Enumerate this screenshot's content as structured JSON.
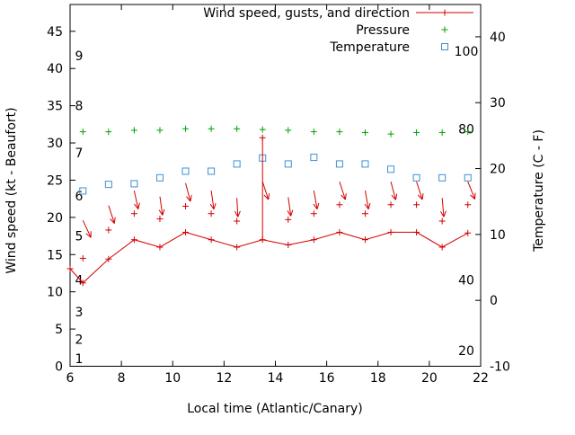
{
  "chart_data": {
    "type": "line",
    "title": "",
    "xlabel": "Local time (Atlantic/Canary)",
    "ylabel_left": "Wind speed (kt - Beaufort)",
    "ylabel_right": "Temperature (C - F)",
    "legend": {
      "wind": "Wind speed, gusts, and direction",
      "pressure": "Pressure",
      "temperature": "Temperature"
    },
    "legend_position": "top-center-inside",
    "grid": false,
    "x_range": [
      6,
      22
    ],
    "x_ticks": [
      6,
      8,
      10,
      12,
      14,
      16,
      18,
      20,
      22
    ],
    "y_left_range": [
      0,
      48.6
    ],
    "y_left_ticks": [
      0,
      5,
      10,
      15,
      20,
      25,
      30,
      35,
      40,
      45
    ],
    "y_right_range": [
      -10,
      44.9
    ],
    "y_right_ticks": [
      -10,
      0,
      10,
      20,
      30,
      40
    ],
    "beaufort_scale": {
      "labels": [
        "1",
        "2",
        "3",
        "4",
        "5",
        "6",
        "7",
        "8",
        "9"
      ],
      "kt_positions": [
        1.0,
        3.6,
        7.3,
        11.6,
        17.5,
        22.9,
        28.7,
        35.0,
        41.7
      ]
    },
    "inner_right_scale": {
      "labels": [
        "100",
        "80",
        "40",
        "20"
      ],
      "kt_positions": [
        42.3,
        31.9,
        11.6,
        2.1
      ]
    },
    "colors": {
      "wind": "#d40000",
      "pressure": "#00a000",
      "temperature": "#3f8fd2",
      "axis": "#000000"
    },
    "series": {
      "wind_speed": {
        "x": [
          6.0,
          6.5,
          7.5,
          8.5,
          9.5,
          10.5,
          11.5,
          12.5,
          13.5,
          14.5,
          15.5,
          16.5,
          17.5,
          18.5,
          19.5,
          20.5,
          21.5
        ],
        "y": [
          13.1,
          11.2,
          14.4,
          17.0,
          16.0,
          18.0,
          17.0,
          16.0,
          17.0,
          16.3,
          17.0,
          18.0,
          17.0,
          18.0,
          18.0,
          16.0,
          17.9
        ]
      },
      "gusts": {
        "x": [
          6.5,
          7.5,
          8.5,
          9.5,
          10.5,
          11.5,
          12.5,
          13.5,
          14.5,
          15.5,
          16.5,
          17.5,
          18.5,
          19.5,
          20.5,
          21.5
        ],
        "y": [
          14.5,
          18.3,
          20.5,
          19.8,
          21.5,
          20.5,
          19.5,
          30.7,
          19.7,
          20.5,
          21.7,
          20.5,
          21.7,
          21.7,
          19.5,
          21.7
        ]
      },
      "gust_spike": {
        "x": 13.5,
        "from": 17.0,
        "to": 30.7
      },
      "pressure": {
        "x": [
          6.5,
          7.5,
          8.5,
          9.5,
          10.5,
          11.5,
          12.5,
          13.5,
          14.5,
          15.5,
          16.5,
          17.5,
          18.5,
          19.5,
          20.5,
          21.5
        ],
        "y_left_axis": [
          31.5,
          31.5,
          31.7,
          31.7,
          31.9,
          31.9,
          31.9,
          31.8,
          31.7,
          31.5,
          31.5,
          31.4,
          31.2,
          31.4,
          31.4,
          31.5
        ]
      },
      "temperature": {
        "x": [
          6.5,
          7.5,
          8.5,
          9.5,
          10.5,
          11.5,
          12.5,
          13.5,
          14.5,
          15.5,
          16.5,
          17.5,
          18.5,
          19.5,
          20.5,
          21.5
        ],
        "y_c": [
          16.6,
          17.6,
          17.7,
          18.6,
          19.6,
          19.6,
          20.7,
          21.6,
          20.7,
          21.7,
          20.7,
          20.7,
          19.9,
          18.6,
          18.6,
          18.6
        ]
      },
      "wind_arrows": {
        "x": [
          6.5,
          7.5,
          8.5,
          9.5,
          10.5,
          11.5,
          12.5,
          13.5,
          14.5,
          15.5,
          16.5,
          17.5,
          18.5,
          19.5,
          20.5,
          21.5
        ],
        "top_kt": [
          19.6,
          21.6,
          23.6,
          22.8,
          24.6,
          23.6,
          22.6,
          24.8,
          22.7,
          23.6,
          24.8,
          23.6,
          24.8,
          24.8,
          22.6,
          24.8
        ],
        "tilt_deg": [
          25,
          18,
          12,
          8,
          15,
          8,
          3,
          18,
          8,
          10,
          18,
          10,
          15,
          18,
          5,
          22
        ]
      }
    }
  }
}
